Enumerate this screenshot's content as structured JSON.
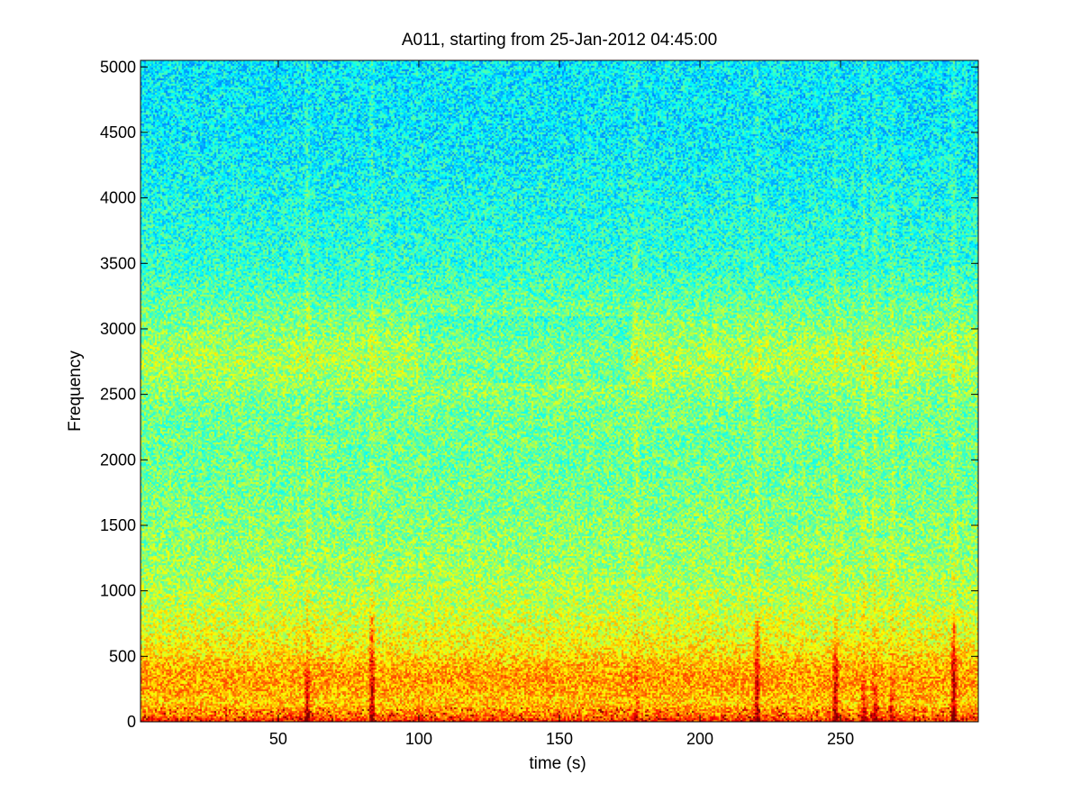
{
  "chart_data": {
    "type": "heatmap",
    "title": "A011, starting from 25-Jan-2012 04:45:00",
    "xlabel": "time (s)",
    "ylabel": "Frequency",
    "xlim": [
      1,
      299
    ],
    "ylim": [
      0,
      5050
    ],
    "x_ticks": [
      50,
      100,
      150,
      200,
      250
    ],
    "x_tick_labels": [
      "50",
      "100",
      "150",
      "200",
      "250"
    ],
    "y_ticks": [
      0,
      500,
      1000,
      1500,
      2000,
      2500,
      3000,
      3500,
      4000,
      4500,
      5000
    ],
    "y_tick_labels": [
      "0",
      "500",
      "1000",
      "1500",
      "2000",
      "2500",
      "3000",
      "3500",
      "4000",
      "4500",
      "5000"
    ],
    "colormap": "jet",
    "grid": false,
    "legend": "none",
    "intensity_profile": {
      "frequency": [
        0,
        60,
        150,
        250,
        350,
        450,
        550,
        700,
        900,
        1200,
        1600,
        2000,
        2400,
        2700,
        2800,
        2950,
        3200,
        3500,
        4000,
        4500,
        5050
      ],
      "level": [
        0.86,
        0.74,
        0.68,
        0.71,
        0.72,
        0.69,
        0.64,
        0.6,
        0.56,
        0.53,
        0.5,
        0.48,
        0.49,
        0.54,
        0.55,
        0.52,
        0.47,
        0.42,
        0.39,
        0.36,
        0.36
      ]
    },
    "transient_events": [
      {
        "time": 60,
        "peak_frequency": 420,
        "strength": 0.9
      },
      {
        "time": 83,
        "peak_frequency": 820,
        "strength": 0.95
      },
      {
        "time": 177,
        "peak_frequency": 200,
        "strength": 0.6
      },
      {
        "time": 220,
        "peak_frequency": 780,
        "strength": 0.85
      },
      {
        "time": 248,
        "peak_frequency": 650,
        "strength": 0.85
      },
      {
        "time": 258,
        "peak_frequency": 280,
        "strength": 0.75
      },
      {
        "time": 262,
        "peak_frequency": 300,
        "strength": 0.75
      },
      {
        "time": 268,
        "peak_frequency": 250,
        "strength": 0.7
      },
      {
        "time": 290,
        "peak_frequency": 850,
        "strength": 0.95
      }
    ],
    "quiet_bands": [
      {
        "from_time": 100,
        "to_time": 175,
        "frequency_from": 2600,
        "frequency_to": 3100
      }
    ]
  }
}
